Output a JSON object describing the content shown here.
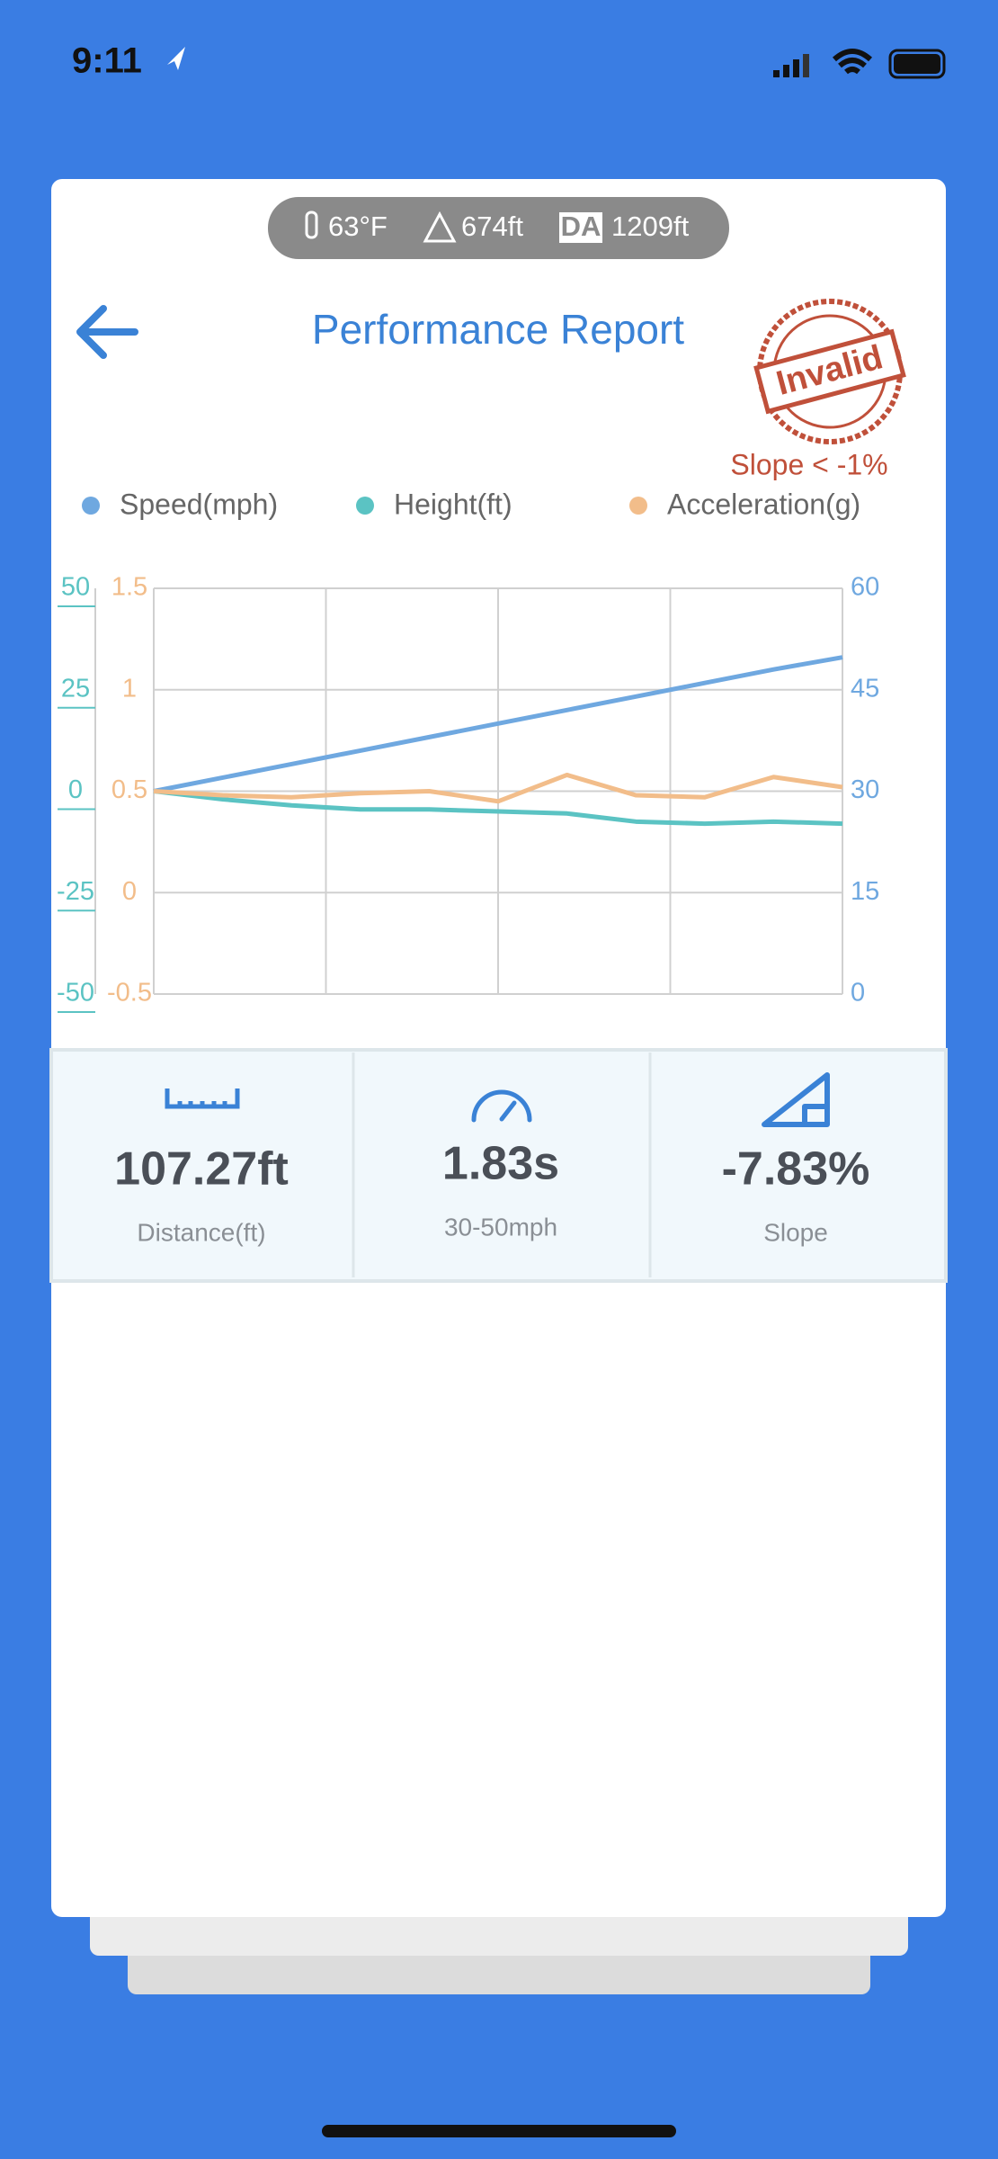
{
  "status_bar": {
    "time": "9:11"
  },
  "conditions": {
    "temperature": "63°F",
    "altitude": "674ft",
    "da_icon": "DA",
    "density_altitude": "1209ft"
  },
  "header": {
    "title": "Performance Report",
    "stamp": "Invalid",
    "stamp_note": "Slope < -1%"
  },
  "chart_data": {
    "type": "line",
    "series": [
      {
        "name": "Speed(mph)",
        "color": "#6fa8e0",
        "axis": "y2",
        "values": [
          30,
          32,
          34,
          36,
          38,
          40,
          42,
          44,
          46,
          48,
          49.8
        ]
      },
      {
        "name": "Height(ft)",
        "color": "#5bc3c3",
        "axis": "y",
        "values": [
          0,
          -2,
          -3.5,
          -4.5,
          -4.5,
          -5,
          -5.5,
          -7.5,
          -8,
          -7.5,
          -8
        ]
      },
      {
        "name": "Acceleration(g)",
        "color": "#f2bd8a",
        "axis": "y3",
        "values": [
          0.5,
          0.48,
          0.47,
          0.49,
          0.5,
          0.45,
          0.58,
          0.48,
          0.47,
          0.57,
          0.52
        ]
      }
    ],
    "ylim": [
      -50,
      50
    ],
    "yticks": [
      50,
      25,
      0,
      -25,
      -50
    ],
    "y3lim": [
      -0.5,
      1.5
    ],
    "y3ticks": [
      1.5,
      1,
      0.5,
      0,
      -0.5
    ],
    "y2lim": [
      0,
      60
    ],
    "y2ticks": [
      60,
      45,
      30,
      15,
      0
    ],
    "grid": true
  },
  "stats": [
    {
      "value": "107.27ft",
      "label": "Distance(ft)"
    },
    {
      "value": "1.83s",
      "label": "30-50mph"
    },
    {
      "value": "-7.83%",
      "label": "Slope"
    }
  ]
}
